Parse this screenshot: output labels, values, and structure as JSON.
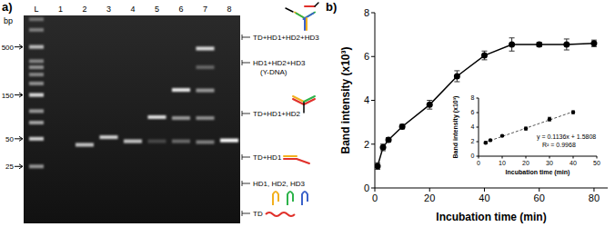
{
  "panel_labels": [
    "a)",
    "b)"
  ],
  "gel": {
    "bp_label": "bp",
    "ylim": [
      1100,
      6
    ],
    "ladder": {
      "label": "L",
      "marker_labels": [
        500,
        150,
        50,
        25
      ],
      "bands": [
        {
          "bp": 1000,
          "intensity": 0.35
        },
        {
          "bp": 766,
          "intensity": 0.4
        },
        {
          "bp": 500,
          "intensity": 0.7
        },
        {
          "bp": 350,
          "intensity": 0.45
        },
        {
          "bp": 300,
          "intensity": 0.5
        },
        {
          "bp": 250,
          "intensity": 0.45
        },
        {
          "bp": 200,
          "intensity": 0.5
        },
        {
          "bp": 150,
          "intensity": 0.85
        },
        {
          "bp": 100,
          "intensity": 0.55
        },
        {
          "bp": 75,
          "intensity": 0.6
        },
        {
          "bp": 50,
          "intensity": 0.8
        },
        {
          "bp": 25,
          "intensity": 0.55
        }
      ]
    },
    "lanes": [
      {
        "label": "1",
        "bands": []
      },
      {
        "label": "2",
        "bands": [
          {
            "bp": 43,
            "intensity": 0.75
          }
        ]
      },
      {
        "label": "3",
        "bands": [
          {
            "bp": 52,
            "intensity": 0.8
          }
        ]
      },
      {
        "label": "4",
        "bands": [
          {
            "bp": 47,
            "intensity": 0.75
          }
        ]
      },
      {
        "label": "5",
        "bands": [
          {
            "bp": 86,
            "intensity": 0.85
          },
          {
            "bp": 47,
            "intensity": 0.2
          }
        ]
      },
      {
        "label": "6",
        "bands": [
          {
            "bp": 170,
            "intensity": 0.9
          },
          {
            "bp": 84,
            "intensity": 0.55
          },
          {
            "bp": 47,
            "intensity": 0.35
          }
        ]
      },
      {
        "label": "7",
        "bands": [
          {
            "bp": 480,
            "intensity": 0.85
          },
          {
            "bp": 300,
            "intensity": 0.3
          },
          {
            "bp": 168,
            "intensity": 0.55
          },
          {
            "bp": 84,
            "intensity": 0.5
          },
          {
            "bp": 46,
            "intensity": 0.45
          }
        ]
      },
      {
        "label": "8",
        "bands": [
          {
            "bp": 48,
            "intensity": 1.0
          }
        ]
      }
    ],
    "annotations": [
      {
        "label": "TD+HD1+HD2+HD3"
      },
      {
        "label": "HD1+HD2+HD3",
        "sublabel": "(Y-DNA)"
      },
      {
        "label": "TD+HD1+HD2"
      },
      {
        "label": "TD+HD1"
      },
      {
        "label": "HD1, HD2, HD3"
      },
      {
        "label": "TD"
      }
    ]
  },
  "chart_data": [
    {
      "type": "line",
      "xlabel": "Incubation time (min)",
      "ylabel": "Band intensity (x10³)",
      "x": [
        1,
        3,
        5,
        10,
        20,
        30,
        40,
        50,
        60,
        70,
        80
      ],
      "series": [
        {
          "color": "#000000",
          "marker": "circle",
          "line_style": "solid",
          "values": [
            1.0,
            1.85,
            2.2,
            2.8,
            3.8,
            5.1,
            6.05,
            6.55,
            6.55,
            6.55,
            6.6
          ],
          "errors": [
            0.15,
            0.15,
            0.1,
            0.1,
            0.2,
            0.25,
            0.2,
            0.3,
            0.1,
            0.25,
            0.15
          ]
        }
      ],
      "xlim": [
        0,
        85
      ],
      "ylim": [
        0,
        8
      ],
      "xticks": [
        0,
        20,
        40,
        60,
        80
      ],
      "yticks": [
        0,
        2,
        4,
        6,
        8
      ]
    },
    {
      "type": "scatter",
      "xlabel": "Incubation time (min)",
      "ylabel": "Band intensity (x10³)",
      "x": [
        3,
        5,
        10,
        20,
        30,
        40
      ],
      "series": [
        {
          "color": "#000000",
          "marker": "circle",
          "values": [
            1.85,
            2.2,
            2.8,
            3.8,
            5.1,
            6.05
          ],
          "errors": [
            0.15,
            0.1,
            0.1,
            0.2,
            0.25,
            0.2
          ]
        }
      ],
      "trendline": {
        "slope": 0.1136,
        "intercept": 1.5808,
        "line_style": "dashed",
        "color": "#555555",
        "equation": "y = 0.1136x + 1.5808",
        "r2": "R² = 0.9968"
      },
      "xlim": [
        0,
        50
      ],
      "ylim": [
        0,
        8
      ],
      "xticks": [
        0,
        10,
        20,
        30,
        40,
        50
      ],
      "yticks": [
        0,
        2,
        4,
        6,
        8
      ]
    }
  ]
}
